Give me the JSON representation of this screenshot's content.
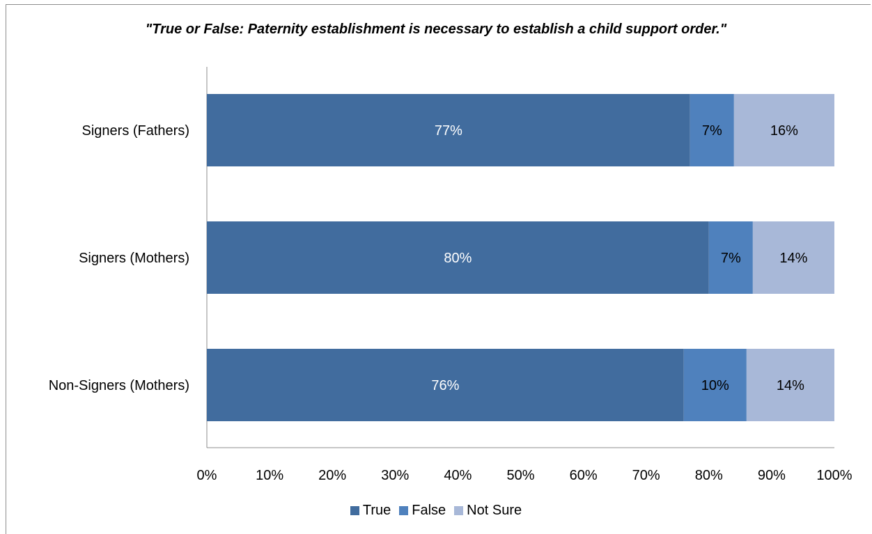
{
  "chart_data": {
    "type": "bar",
    "orientation": "horizontal",
    "stacked": true,
    "title": "\"True or False: Paternity establishment is necessary to establish a child support order.\"",
    "categories": [
      "Signers (Fathers)",
      "Signers (Mothers)",
      "Non-Signers (Mothers)"
    ],
    "series": [
      {
        "name": "True",
        "color": "#416c9e",
        "values": [
          77,
          80,
          76
        ],
        "labels": [
          "77%",
          "80%",
          "76%"
        ],
        "label_color": "#ffffff"
      },
      {
        "name": "False",
        "color": "#4f81bd",
        "values": [
          7,
          7,
          10
        ],
        "labels": [
          "7%",
          "7%",
          "10%"
        ],
        "label_color": "#000000"
      },
      {
        "name": "Not Sure",
        "color": "#a8b8d8",
        "values": [
          16,
          14,
          14
        ],
        "labels": [
          "16%",
          "14%",
          "14%"
        ],
        "label_color": "#000000"
      }
    ],
    "x_ticks": [
      "0%",
      "10%",
      "20%",
      "30%",
      "40%",
      "50%",
      "60%",
      "70%",
      "80%",
      "90%",
      "100%"
    ],
    "xlim": [
      0,
      100
    ],
    "grid": false,
    "legend_position": "bottom"
  }
}
